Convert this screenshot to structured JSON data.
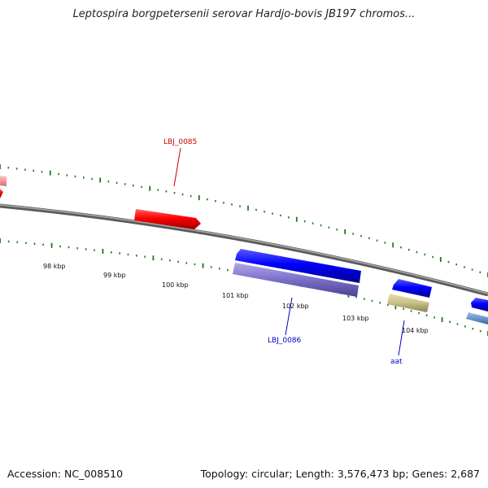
{
  "title": "Leptospira borgpetersenii serovar Hardjo-bovis JB197 chromos...",
  "footer": {
    "accession": "Accession: NC_008510",
    "summary": "Topology: circular; Length: 3,576,473 bp; Genes: 2,687"
  },
  "colors": {
    "backbone": "#808080",
    "tick": "#1a7a1a",
    "gene_forward": "#ff0000",
    "gene_forward_light": "#f28c8c",
    "gene_reverse": "#0000ff",
    "gene_rna": "#7a6fc8",
    "gene_other": "#c8c085",
    "gene_light_blue": "#5a8fd0",
    "label_red": "#cc0000",
    "label_blue": "#0000cc"
  },
  "ticks": [
    {
      "label": "98 kbp"
    },
    {
      "label": "99 kbp"
    },
    {
      "label": "100 kbp"
    },
    {
      "label": "101 kbp"
    },
    {
      "label": "102 kbp"
    },
    {
      "label": "103 kbp"
    },
    {
      "label": "104 kbp"
    }
  ],
  "genes": [
    {
      "label": "LBJ_0085"
    },
    {
      "label": "LBJ_0086"
    },
    {
      "label": "aat"
    }
  ]
}
